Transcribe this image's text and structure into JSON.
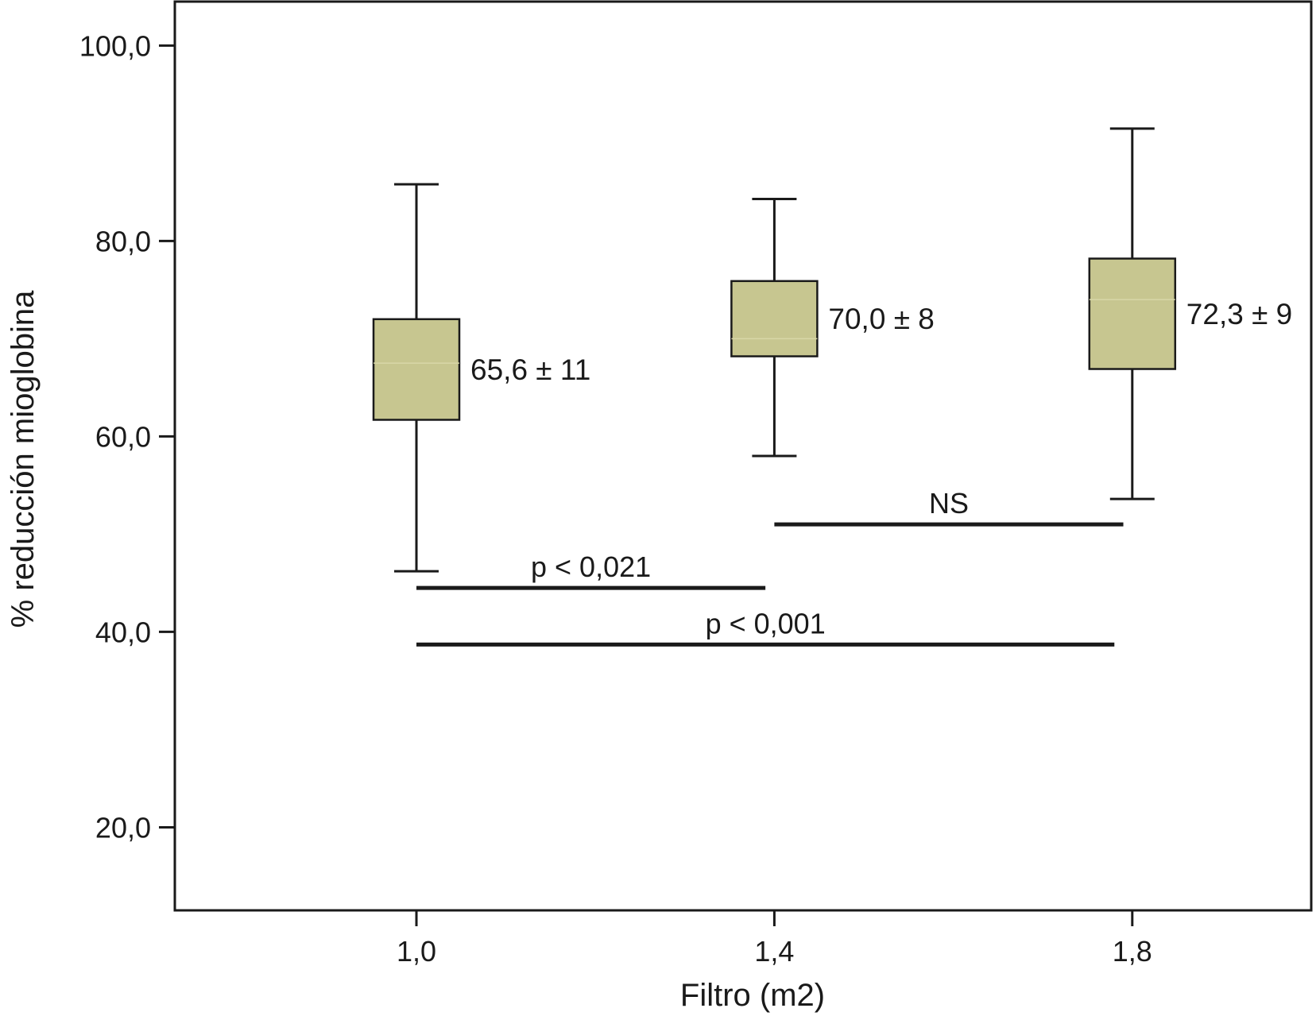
{
  "chart_data": {
    "type": "box",
    "xlabel": "Filtro (m2)",
    "ylabel": "% reducción mioglobina",
    "ylim": [
      11.5,
      104.5
    ],
    "yticks": [
      "100,0",
      "80,0",
      "60,0",
      "40,0",
      "20,0"
    ],
    "ytick_values": [
      100,
      80,
      60,
      40,
      20
    ],
    "categories": [
      "1,0",
      "1,4",
      "1,8"
    ],
    "category_values": [
      1.0,
      1.4,
      1.8
    ],
    "xlim": [
      0.73,
      2.0
    ],
    "box_color": "#c7c690",
    "boxes": [
      {
        "x": 1.0,
        "min": 46.2,
        "q1": 61.7,
        "median": 67.5,
        "q3": 72.0,
        "max": 85.8,
        "label": "65,6 ± 11"
      },
      {
        "x": 1.4,
        "min": 58.0,
        "q1": 68.2,
        "median": 70.0,
        "q3": 75.9,
        "max": 84.3,
        "label": "70,0 ± 8"
      },
      {
        "x": 1.8,
        "min": 53.6,
        "q1": 66.9,
        "median": 74.0,
        "q3": 78.2,
        "max": 91.5,
        "label": "72,3 ± 9"
      }
    ],
    "significance": [
      {
        "x1": 1.0,
        "x2": 1.39,
        "y": 44.5,
        "label": "p < 0,021"
      },
      {
        "x1": 1.4,
        "x2": 1.79,
        "y": 51.0,
        "label": "NS"
      },
      {
        "x1": 1.0,
        "x2": 1.78,
        "y": 38.7,
        "label": "p < 0,001"
      }
    ]
  }
}
